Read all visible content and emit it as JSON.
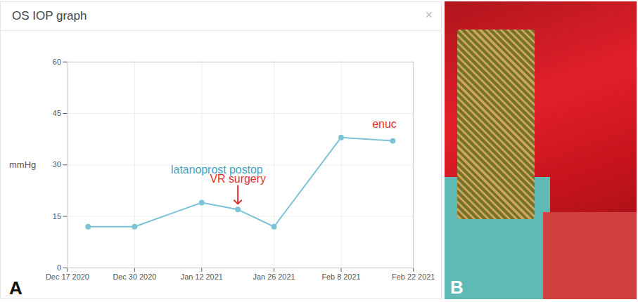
{
  "chart_data": {
    "type": "line",
    "panel_label": "A",
    "title": "OS IOP graph",
    "close_button": "×",
    "ylabel": "mmHg",
    "x": [
      "2020-12-21",
      "2020-12-30",
      "2021-01-12",
      "2021-01-19",
      "2021-01-26",
      "2021-02-08",
      "2021-02-18"
    ],
    "values": [
      12,
      12,
      19,
      17,
      12,
      38,
      37
    ],
    "color": "#7cc3d8",
    "marker": "circle",
    "xlim": [
      "2020-12-17",
      "2021-02-22"
    ],
    "xticks": [
      {
        "value": "2020-12-17",
        "label": "Dec 17 2020"
      },
      {
        "value": "2020-12-30",
        "label": "Dec 30 2020"
      },
      {
        "value": "2021-01-12",
        "label": "Jan 12 2021"
      },
      {
        "value": "2021-01-26",
        "label": "Jan 26 2021"
      },
      {
        "value": "2021-02-08",
        "label": "Feb 8 2021"
      },
      {
        "value": "2021-02-22",
        "label": "Feb 22 2021"
      }
    ],
    "ylim": [
      0,
      60
    ],
    "yticks": [
      0,
      15,
      30,
      45,
      60
    ],
    "grid": true,
    "annotations": [
      {
        "text": "latanoprost postop",
        "color": "#3fa3c4",
        "x": "2021-01-19"
      },
      {
        "text": "VR surgery",
        "color": "#e0302a",
        "x": "2021-01-19",
        "marker": "arrow"
      },
      {
        "text": "enuc",
        "color": "#e0302a",
        "x": "2021-02-18"
      }
    ]
  },
  "photo": {
    "panel_label": "B"
  }
}
